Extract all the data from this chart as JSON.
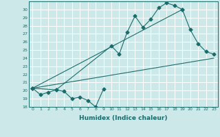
{
  "xlabel": "Humidex (Indice chaleur)",
  "bg_color": "#cce8e8",
  "line_color": "#1a6b6b",
  "grid_color": "#ffffff",
  "ylim": [
    18,
    31
  ],
  "xlim": [
    -0.5,
    23.5
  ],
  "yticks": [
    18,
    19,
    20,
    21,
    22,
    23,
    24,
    25,
    26,
    27,
    28,
    29,
    30
  ],
  "xticks": [
    0,
    1,
    2,
    3,
    4,
    5,
    6,
    7,
    8,
    9,
    10,
    11,
    12,
    13,
    14,
    15,
    16,
    17,
    18,
    19,
    20,
    21,
    22,
    23
  ],
  "line1_x": [
    0,
    1,
    2,
    3,
    4,
    5,
    6,
    7,
    8,
    9
  ],
  "line1_y": [
    20.3,
    19.5,
    19.8,
    20.1,
    19.9,
    19.0,
    19.2,
    18.8,
    18.0,
    20.2
  ],
  "line2_x": [
    0,
    3,
    10,
    11,
    12,
    13,
    14,
    15,
    16,
    17,
    18,
    19
  ],
  "line2_y": [
    20.3,
    20.1,
    25.5,
    24.5,
    27.2,
    29.2,
    27.8,
    28.8,
    30.2,
    30.8,
    30.5,
    30.0
  ],
  "line3_x": [
    0,
    19,
    20,
    21,
    22,
    23
  ],
  "line3_y": [
    20.3,
    30.0,
    27.5,
    25.8,
    24.8,
    24.5
  ],
  "line4_x": [
    0,
    23
  ],
  "line4_y": [
    20.3,
    24.0
  ],
  "marker_x2": [
    0,
    3,
    10,
    11,
    12,
    13,
    14,
    15,
    16,
    17,
    18,
    19
  ],
  "marker_x3": [
    0,
    19,
    20,
    21,
    22,
    23
  ]
}
